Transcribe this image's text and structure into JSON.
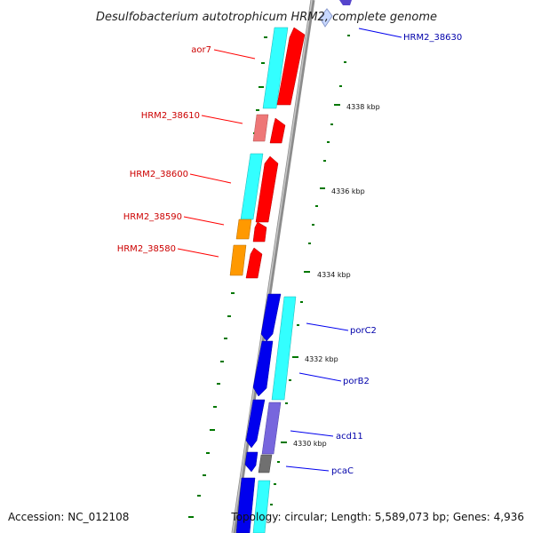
{
  "title": "Desulfobacterium autotrophicum HRM2, complete genome",
  "footer": {
    "accession": "Accession: NC_012108",
    "summary": "Topology: circular; Length: 5,589,073 bp; Genes: 4,936"
  },
  "scale_labels": [
    "4338 kbp",
    "4336 kbp",
    "4334 kbp",
    "4332 kbp",
    "4330 kbp"
  ],
  "gene_labels": {
    "left": [
      "aor7",
      "HRM2_38610",
      "HRM2_38600",
      "HRM2_38590",
      "HRM2_38580"
    ],
    "right": [
      "HRM2_38630",
      "porC2",
      "porB2",
      "acd11",
      "pcaC"
    ]
  },
  "colors": {
    "left_label": "#cc0000",
    "right_label": "#0000aa",
    "forward_gene": "#ff0000",
    "forward_gene_light": "#ee7777",
    "reverse_gene": "#0000ee",
    "cds_cyan": "#33ffff",
    "orange_gene": "#ff9900",
    "purple_gene": "#7766dd",
    "grey_gene": "#707070",
    "backbone": "#8c8c8c",
    "tick": "#007700"
  }
}
